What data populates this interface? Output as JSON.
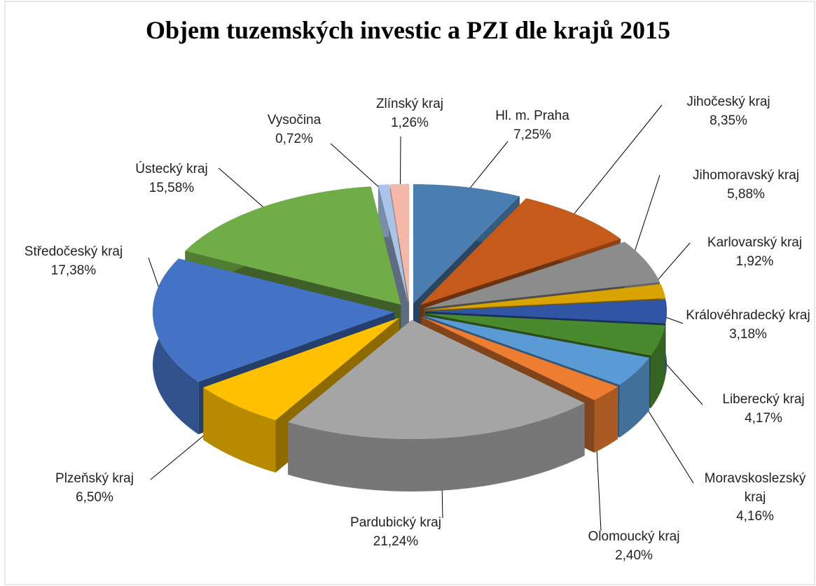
{
  "chart_data": {
    "type": "pie3d",
    "title": "Objem tuzemských investic a PZI dle krajů 2015",
    "categories": [
      "Hl. m. Praha",
      "Jihočeský kraj",
      "Jihomoravský kraj",
      "Karlovarský kraj",
      "Královéhradecký kraj",
      "Liberecký kraj",
      "Moravskoslezský kraj",
      "Olomoucký kraj",
      "Pardubický kraj",
      "Plzeňský kraj",
      "Středočeský kraj",
      "Ústecký kraj",
      "Vysočina",
      "Zlínský kraj"
    ],
    "values": [
      7.25,
      8.35,
      5.88,
      1.92,
      3.18,
      4.17,
      4.16,
      2.4,
      21.24,
      6.5,
      17.38,
      15.58,
      0.72,
      1.26
    ],
    "value_labels": [
      "7,25%",
      "8,35%",
      "5,88%",
      "1,92%",
      "3,18%",
      "4,17%",
      "4,16%",
      "2,40%",
      "21,24%",
      "6,50%",
      "17,38%",
      "15,58%",
      "0,72%",
      "1,26%"
    ],
    "colors": [
      "#4a7eb0",
      "#c55a1a",
      "#8c8c8c",
      "#d9a300",
      "#2f55a4",
      "#4a8a2e",
      "#5a9bd5",
      "#ed7d31",
      "#a5a5a5",
      "#ffc000",
      "#4472c4",
      "#70ad47",
      "#a9c4e8",
      "#f4b8a8"
    ]
  }
}
